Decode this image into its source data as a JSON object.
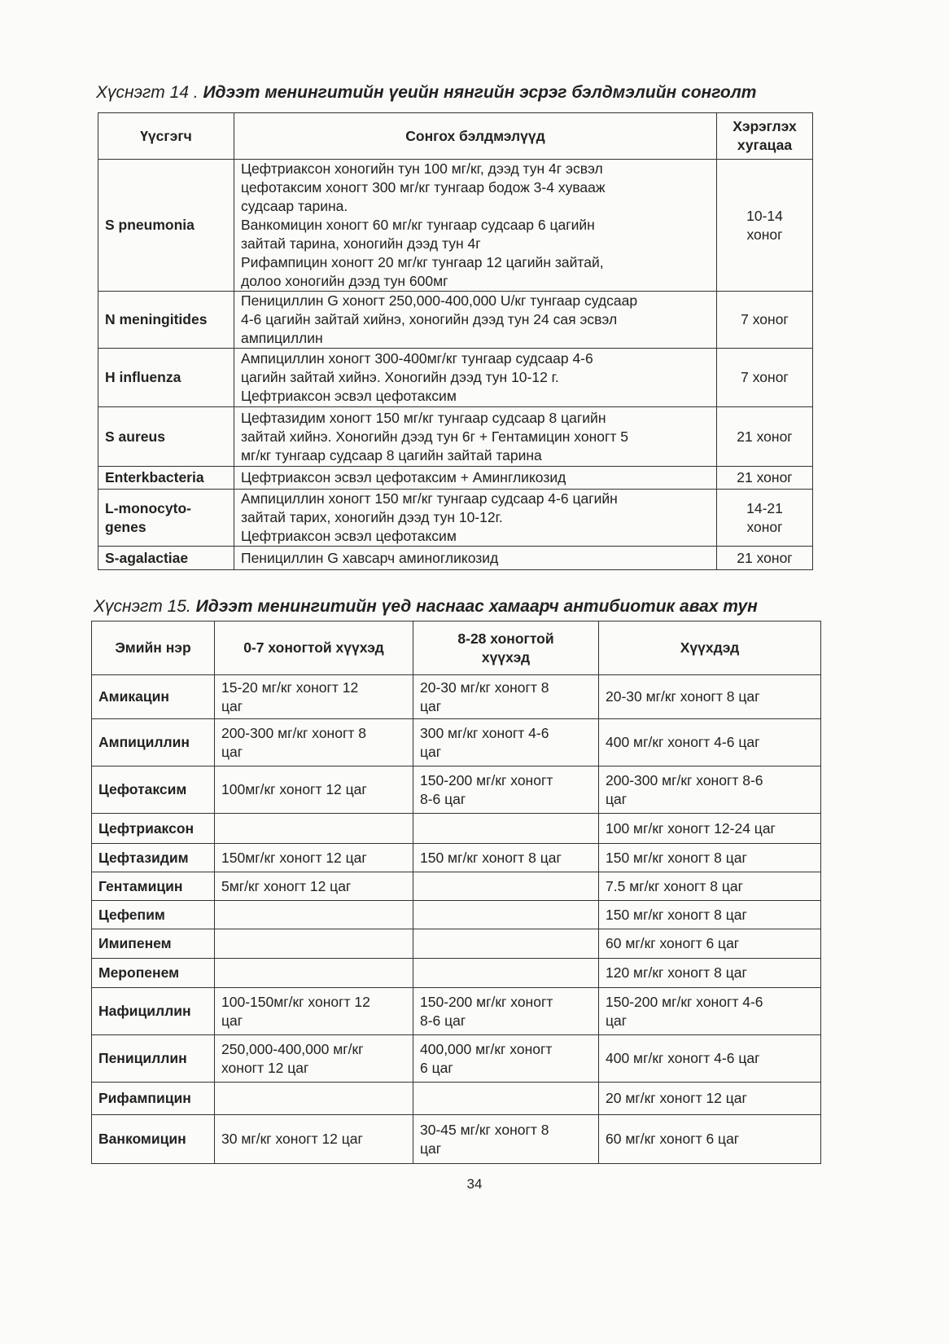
{
  "table14": {
    "label": "Хүснэгт 14 .",
    "title": "Идээт менингитийн үеийн нянгийн эсрэг бэлдмэлийн сонголт",
    "headers": [
      "Үүсгэгч",
      "Сонгох бэлдмэлүүд",
      "Хэрэглэх хугацаа"
    ],
    "rows": [
      {
        "pathogen": "S pneumonia",
        "drugs": "Цефтриаксон хоногийн тун 100 мг/кг, дээд тун 4г эсвэл\nцефотаксим хоногт 300 мг/кг тунгаар бодож 3-4 хувааж\nсудсаар тарина.\nВанкомицин хоногт 60 мг/кг тунгаар судсаар 6 цагийн\nзайтай тарина, хоногийн дээд тун 4г\nРифампицин  хоногт 20 мг/кг тунгаар 12 цагийн зайтай,\nдолоо хоногийн дээд тун 600мг",
        "duration": "10-14\nхоног"
      },
      {
        "pathogen": "N meningitides",
        "drugs": "Пенициллин G хоногт 250,000-400,000 U/кг тунгаар судсаар\n4-6 цагийн зайтай хийнэ, хоногийн дээд тун 24 сая эсвэл\nампициллин",
        "duration": "7 хоног"
      },
      {
        "pathogen": "H influenza",
        "drugs": "Ампициллин хоногт 300-400мг/кг тунгаар судсаар 4-6\nцагийн зайтай хийнэ. Хоногийн дээд тун 10-12 г.\nЦефтриаксон эсвэл цефотаксим",
        "duration": "7 хоног"
      },
      {
        "pathogen": "S aureus",
        "drugs": "Цефтазидим хоногт 150 мг/кг тунгаар судсаар 8 цагийн\nзайтай хийнэ. Хоногийн дээд тун 6г + Гентамицин хоногт 5\nмг/кг тунгаар судсаар 8 цагийн зайтай тарина",
        "duration": "21 хоног"
      },
      {
        "pathogen": "Enterkbacteria",
        "drugs": "Цефтриаксон эсвэл цефотаксим + Аминглико­зид",
        "duration": "21 хоног"
      },
      {
        "pathogen": "L-monocyto-\ngenes",
        "drugs": "Ампициллин хоногт 150 мг/кг тунгаар судсаар 4-6 цагийн\nзайтай тарих, хоногийн дээд тун 10-12г.\nЦефтриаксон эсвэл цефотаксим",
        "duration": "14-21\nхоног"
      },
      {
        "pathogen": "S-agalactiae",
        "drugs": "Пенициллин G хавсарч аминогликозид",
        "duration": "21 хоног"
      }
    ]
  },
  "table15": {
    "label": "Хүснэгт 15.",
    "title": "Идээт менингитийн үед наснаас хамаарч антибиотик авах тун",
    "headers": [
      "Эмийн нэр",
      "0-7 хоногтой хүүхэд",
      "8-28  хоногтой\nхүүхэд",
      "Хүүхдэд"
    ],
    "rows": [
      {
        "drug": "Амикацин",
        "d0_7": "15-20 мг/кг хоногт 12\nцаг",
        "d8_28": "20-30 мг/кг хоногт 8\nцаг",
        "child": "20-30 мг/кг хоногт 8 цаг"
      },
      {
        "drug": "Ампициллин",
        "d0_7": "200-300 мг/кг хоногт 8\nцаг",
        "d8_28": "300 мг/кг хоногт 4-6\nцаг",
        "child": "400 мг/кг хоногт 4-6 цаг"
      },
      {
        "drug": "Цефотаксим",
        "d0_7": "100мг/кг хоногт 12 цаг",
        "d8_28": "150-200 мг/кг хоногт\n8-6 цаг",
        "child": "200-300 мг/кг хоногт 8-6\nцаг"
      },
      {
        "drug": "Цефтриаксон",
        "d0_7": "",
        "d8_28": "",
        "child": "100 мг/кг хоногт 12-24 цаг"
      },
      {
        "drug": "Цефтазидим",
        "d0_7": "150мг/кг хоногт 12 цаг",
        "d8_28": "150 мг/кг хоногт 8 цаг",
        "child": "150 мг/кг хоногт 8 цаг"
      },
      {
        "drug": "Гентамицин",
        "d0_7": "5мг/кг хоногт 12 цаг",
        "d8_28": "",
        "child": "7.5 мг/кг хоногт 8 цаг"
      },
      {
        "drug": "Цефепим",
        "d0_7": "",
        "d8_28": "",
        "child": "150 мг/кг хоногт 8 цаг"
      },
      {
        "drug": "Имипенем",
        "d0_7": "",
        "d8_28": "",
        "child": "60 мг/кг хоногт 6 цаг"
      },
      {
        "drug": "Меропенем",
        "d0_7": "",
        "d8_28": "",
        "child": "120 мг/кг хоногт 8 цаг"
      },
      {
        "drug": "Нафициллин",
        "d0_7": "100-150мг/кг хоногт 12\nцаг",
        "d8_28": "150-200 мг/кг хоногт\n8-6 цаг",
        "child": "150-200 мг/кг хоногт 4-6\nцаг"
      },
      {
        "drug": "Пенициллин",
        "d0_7": "250,000-400,000 мг/кг\nхоногт 12 цаг",
        "d8_28": "400,000 мг/кг хоногт\n6 цаг",
        "child": "400 мг/кг хоногт 4-6 цаг"
      },
      {
        "drug": "Рифампицин",
        "d0_7": "",
        "d8_28": "",
        "child": "20 мг/кг хоногт 12 цаг"
      },
      {
        "drug": "Ванкомицин",
        "d0_7": "30 мг/кг хоногт 12 цаг",
        "d8_28": "30-45  мг/кг хоногт 8\nцаг",
        "child": "60 мг/кг хоногт 6 цаг"
      }
    ]
  },
  "page_number": "34"
}
